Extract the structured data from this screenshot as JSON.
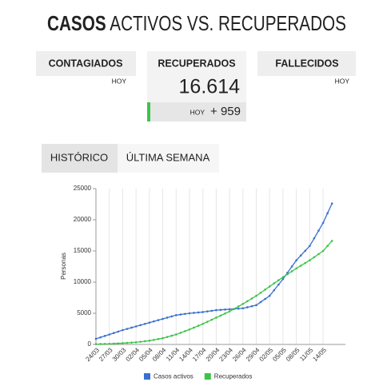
{
  "header": {
    "title_bold": "CASOS",
    "title_rest": "ACTIVOS VS. RECUPERADOS"
  },
  "cards": [
    {
      "label": "CONTAGIADOS",
      "sub": "HOY"
    },
    {
      "label": "RECUPERADOS",
      "value": "16.614",
      "sub": "HOY",
      "delta": "+ 959"
    },
    {
      "label": "FALLECIDOS",
      "sub": "HOY"
    }
  ],
  "tabs": [
    "HISTÓRICO",
    "ÚLTIMA SEMANA"
  ],
  "chart_data": {
    "type": "line",
    "y_label": "Personas",
    "categories": [
      "24/03",
      null,
      null,
      "27/03",
      null,
      null,
      "30/03",
      null,
      null,
      "02/04",
      null,
      null,
      "05/04",
      null,
      null,
      "08/04",
      null,
      null,
      "11/04",
      null,
      null,
      "14/04",
      null,
      null,
      "17/04",
      null,
      null,
      "20/04",
      null,
      null,
      "23/04",
      null,
      null,
      "26/04",
      null,
      null,
      "29/04",
      null,
      null,
      "02/05",
      null,
      null,
      "05/05",
      null,
      null,
      "08/05",
      null,
      null,
      "11/05",
      null,
      null,
      "14/05",
      null,
      null
    ],
    "series": [
      {
        "name": "Casos activos",
        "color": "#3a6fd0",
        "values": [
          900,
          1133,
          1367,
          1600,
          1833,
          2067,
          2300,
          2500,
          2700,
          2900,
          3100,
          3300,
          3500,
          3700,
          3900,
          4100,
          4300,
          4500,
          4700,
          4800,
          4900,
          5000,
          5067,
          5133,
          5200,
          5300,
          5400,
          5500,
          5550,
          5600,
          5650,
          5700,
          5750,
          5800,
          5967,
          6133,
          6300,
          6800,
          7300,
          7800,
          8700,
          9600,
          10500,
          11500,
          12500,
          13500,
          14267,
          15033,
          15800,
          17033,
          18267,
          19500,
          21050,
          22600
        ]
      },
      {
        "name": "Recuperados",
        "color": "#3cc44a",
        "values": [
          50,
          67,
          83,
          100,
          133,
          167,
          200,
          250,
          300,
          350,
          433,
          517,
          600,
          733,
          867,
          1000,
          1200,
          1400,
          1600,
          1867,
          2133,
          2400,
          2700,
          3000,
          3300,
          3633,
          3967,
          4300,
          4633,
          4967,
          5300,
          5700,
          6100,
          6500,
          6933,
          7367,
          7800,
          8300,
          8800,
          9300,
          9800,
          10300,
          10800,
          11267,
          11733,
          12200,
          12633,
          13067,
          13500,
          14000,
          14500,
          15000,
          15807,
          16614
        ]
      }
    ],
    "ylim": [
      0,
      25000
    ],
    "yticks": [
      0,
      5000,
      10000,
      15000,
      20000,
      25000
    ],
    "grid": "x",
    "legend": "bottom"
  }
}
